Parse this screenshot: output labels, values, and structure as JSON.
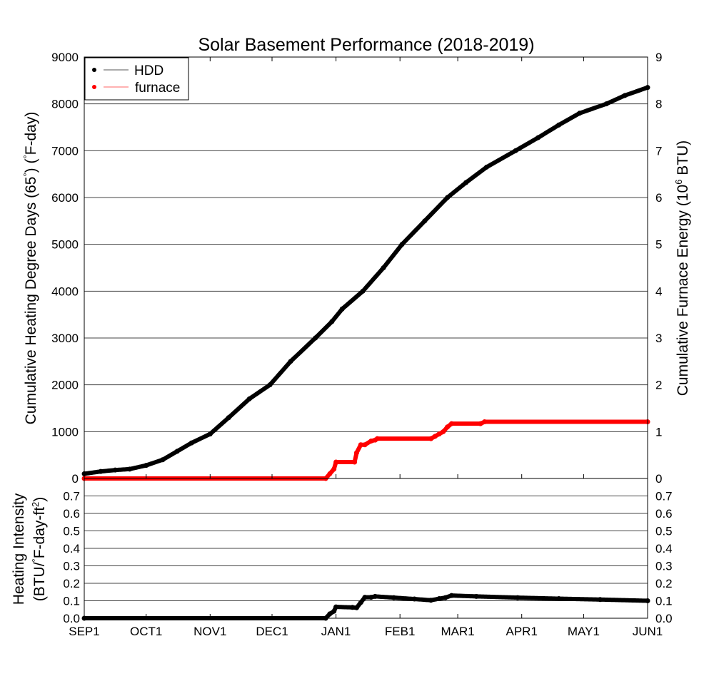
{
  "chart_data": [
    {
      "id": "top",
      "type": "scatter",
      "title": "Solar Basement Performance (2018-2019)",
      "ylabel_left": "Cumulative Heating Degree Days (65°) (°F-day)",
      "ylabel_left_parts": [
        "Cumulative Heating Degree Days (65",
        "°",
        ") (",
        "°",
        "F-day)"
      ],
      "ylabel_right_parts": [
        "Cumulative Furnace Energy (10",
        "6",
        " BTU)"
      ],
      "ylim_left": [
        0,
        9000
      ],
      "ylim_right": [
        0,
        9
      ],
      "yticks_left": [
        "0",
        "1000",
        "2000",
        "3000",
        "4000",
        "5000",
        "6000",
        "7000",
        "8000",
        "9000"
      ],
      "yticks_right": [
        "0",
        "1",
        "2",
        "3",
        "4",
        "5",
        "6",
        "7",
        "8",
        "9"
      ],
      "grid": true,
      "legend": {
        "placement": "top-left",
        "entries": [
          {
            "name": "HDD",
            "color": "#000000"
          },
          {
            "name": "furnace",
            "color": "#ff0000"
          }
        ]
      },
      "x_unit": "days since Sep 1 2018",
      "series": [
        {
          "name": "HDD",
          "axis": "left",
          "color": "#000000",
          "x": [
            0,
            8,
            15,
            22,
            30,
            38,
            45,
            52,
            61,
            70,
            80,
            90,
            100,
            112,
            120,
            125,
            135,
            145,
            154,
            165,
            176,
            185,
            195,
            209,
            220,
            230,
            240,
            253,
            262,
            273
          ],
          "y": [
            100,
            150,
            180,
            200,
            280,
            400,
            580,
            760,
            950,
            1300,
            1700,
            2000,
            2500,
            3000,
            3350,
            3620,
            4000,
            4500,
            5000,
            5500,
            6000,
            6320,
            6650,
            7000,
            7280,
            7550,
            7800,
            8000,
            8180,
            8350
          ]
        },
        {
          "name": "furnace",
          "axis": "right",
          "color": "#ff0000",
          "x": [
            0,
            117,
            119,
            121,
            122,
            131,
            132,
            134,
            136,
            139,
            141,
            142,
            168,
            170,
            172,
            174,
            176,
            178,
            192,
            194,
            273
          ],
          "y": [
            0,
            0,
            0.1,
            0.2,
            0.35,
            0.35,
            0.55,
            0.72,
            0.72,
            0.8,
            0.82,
            0.85,
            0.85,
            0.9,
            0.95,
            1.0,
            1.1,
            1.17,
            1.17,
            1.21,
            1.21
          ]
        }
      ]
    },
    {
      "id": "bottom",
      "type": "scatter",
      "ylabel_lines": [
        "Heating Intensity",
        "(BTU/°F-day-ft²)"
      ],
      "ylabel_line2_parts": [
        "(BTU/",
        "°",
        "F-day-ft",
        "2",
        ")"
      ],
      "ylim": [
        0,
        0.8
      ],
      "yticks": [
        "0.0",
        "0.1",
        "0.2",
        "0.3",
        "0.4",
        "0.5",
        "0.6",
        "0.7"
      ],
      "grid": true,
      "xticks": [
        "SEP1",
        "OCT1",
        "NOV1",
        "DEC1",
        "JAN1",
        "FEB1",
        "MAR1",
        "APR1",
        "MAY1",
        "JUN1"
      ],
      "xtick_days": [
        0,
        30,
        61,
        91,
        122,
        153,
        181,
        212,
        242,
        273
      ],
      "xlim_days": [
        0,
        273
      ],
      "series": [
        {
          "name": "intensity",
          "color": "#000000",
          "x": [
            0,
            117,
            119,
            121,
            122,
            130,
            132,
            134,
            136,
            139,
            141,
            150,
            160,
            168,
            172,
            175,
            178,
            190,
            210,
            230,
            250,
            273
          ],
          "y": [
            0,
            0,
            0.025,
            0.04,
            0.065,
            0.062,
            0.06,
            0.09,
            0.12,
            0.12,
            0.125,
            0.118,
            0.11,
            0.103,
            0.112,
            0.118,
            0.13,
            0.125,
            0.118,
            0.112,
            0.107,
            0.1
          ]
        }
      ]
    }
  ]
}
